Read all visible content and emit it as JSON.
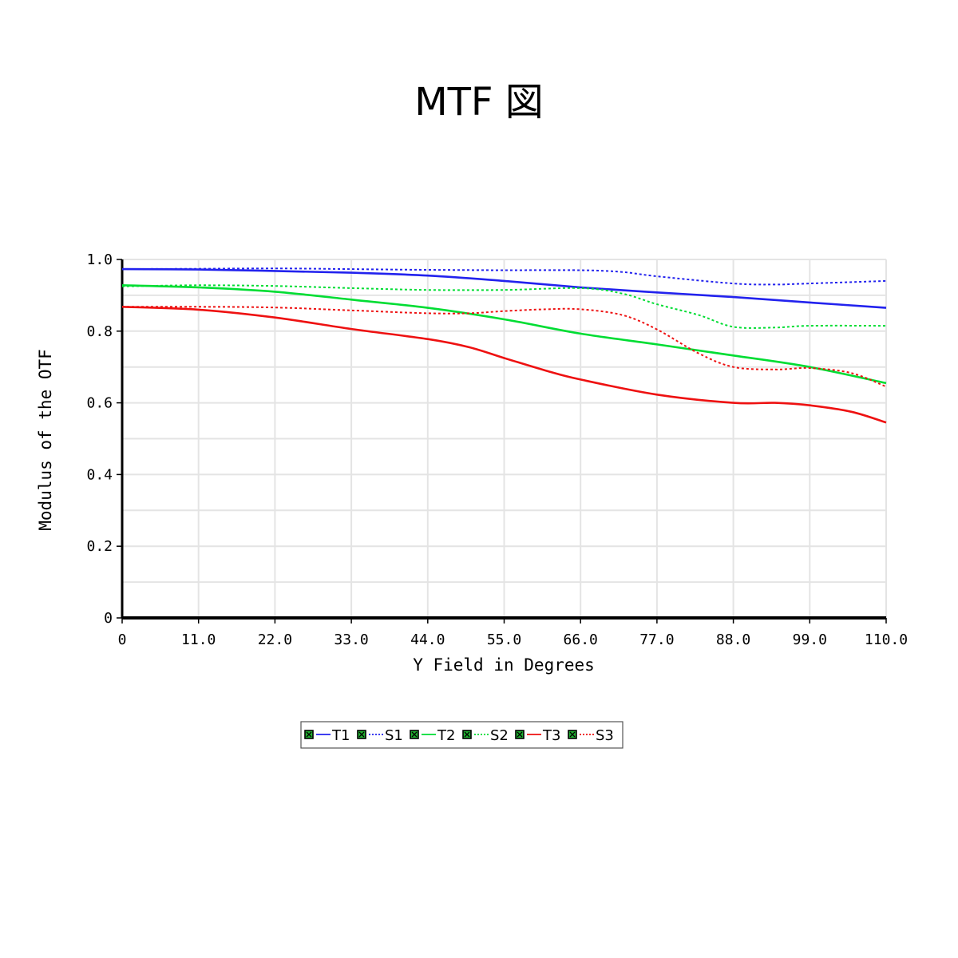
{
  "page": {
    "title": "MTF 図"
  },
  "chart_data": {
    "type": "line",
    "title": "MTF 図",
    "xlabel": "Y Field in Degrees",
    "ylabel": "Modulus of the OTF",
    "xlim": [
      0,
      110
    ],
    "ylim": [
      0,
      1.0
    ],
    "x_ticks": [
      "0",
      "11.0",
      "22.0",
      "33.0",
      "44.0",
      "55.0",
      "66.0",
      "77.0",
      "88.0",
      "99.0",
      "110.0"
    ],
    "y_ticks": [
      "0",
      "0.2",
      "0.4",
      "0.6",
      "0.8",
      "1.0"
    ],
    "grid": true,
    "legend_position": "bottom-center",
    "series": [
      {
        "name": "T1",
        "color": "#2222ee",
        "style": "solid",
        "points": [
          [
            0,
            0.973
          ],
          [
            11,
            0.972
          ],
          [
            22,
            0.968
          ],
          [
            33,
            0.963
          ],
          [
            44,
            0.955
          ],
          [
            55,
            0.94
          ],
          [
            66,
            0.922
          ],
          [
            77,
            0.908
          ],
          [
            88,
            0.895
          ],
          [
            99,
            0.88
          ],
          [
            110,
            0.865
          ]
        ]
      },
      {
        "name": "S1",
        "color": "#2222ee",
        "style": "dotted",
        "points": [
          [
            0,
            0.973
          ],
          [
            11,
            0.974
          ],
          [
            22,
            0.975
          ],
          [
            33,
            0.973
          ],
          [
            44,
            0.971
          ],
          [
            55,
            0.97
          ],
          [
            66,
            0.97
          ],
          [
            72,
            0.965
          ],
          [
            77,
            0.953
          ],
          [
            88,
            0.933
          ],
          [
            94,
            0.93
          ],
          [
            99,
            0.933
          ],
          [
            110,
            0.94
          ]
        ]
      },
      {
        "name": "T2",
        "color": "#00dd33",
        "style": "solid",
        "points": [
          [
            0,
            0.928
          ],
          [
            11,
            0.922
          ],
          [
            22,
            0.91
          ],
          [
            33,
            0.888
          ],
          [
            44,
            0.865
          ],
          [
            55,
            0.833
          ],
          [
            66,
            0.793
          ],
          [
            77,
            0.763
          ],
          [
            88,
            0.732
          ],
          [
            99,
            0.7
          ],
          [
            110,
            0.655
          ]
        ]
      },
      {
        "name": "S2",
        "color": "#00dd33",
        "style": "dotted",
        "points": [
          [
            0,
            0.925
          ],
          [
            11,
            0.928
          ],
          [
            22,
            0.926
          ],
          [
            33,
            0.92
          ],
          [
            44,
            0.915
          ],
          [
            55,
            0.915
          ],
          [
            66,
            0.92
          ],
          [
            72,
            0.905
          ],
          [
            77,
            0.875
          ],
          [
            83,
            0.845
          ],
          [
            88,
            0.812
          ],
          [
            94,
            0.81
          ],
          [
            99,
            0.815
          ],
          [
            110,
            0.815
          ]
        ]
      },
      {
        "name": "T3",
        "color": "#ee1111",
        "style": "solid",
        "points": [
          [
            0,
            0.868
          ],
          [
            11,
            0.86
          ],
          [
            22,
            0.838
          ],
          [
            33,
            0.806
          ],
          [
            44,
            0.778
          ],
          [
            50,
            0.755
          ],
          [
            55,
            0.725
          ],
          [
            61,
            0.69
          ],
          [
            66,
            0.665
          ],
          [
            77,
            0.623
          ],
          [
            88,
            0.6
          ],
          [
            94,
            0.6
          ],
          [
            99,
            0.593
          ],
          [
            105,
            0.575
          ],
          [
            110,
            0.545
          ]
        ]
      },
      {
        "name": "S3",
        "color": "#ee1111",
        "style": "dotted",
        "points": [
          [
            0,
            0.868
          ],
          [
            11,
            0.868
          ],
          [
            22,
            0.866
          ],
          [
            33,
            0.858
          ],
          [
            44,
            0.85
          ],
          [
            50,
            0.85
          ],
          [
            55,
            0.856
          ],
          [
            61,
            0.861
          ],
          [
            66,
            0.861
          ],
          [
            72,
            0.845
          ],
          [
            77,
            0.805
          ],
          [
            83,
            0.738
          ],
          [
            88,
            0.7
          ],
          [
            94,
            0.693
          ],
          [
            99,
            0.697
          ],
          [
            105,
            0.683
          ],
          [
            110,
            0.645
          ]
        ]
      }
    ]
  }
}
